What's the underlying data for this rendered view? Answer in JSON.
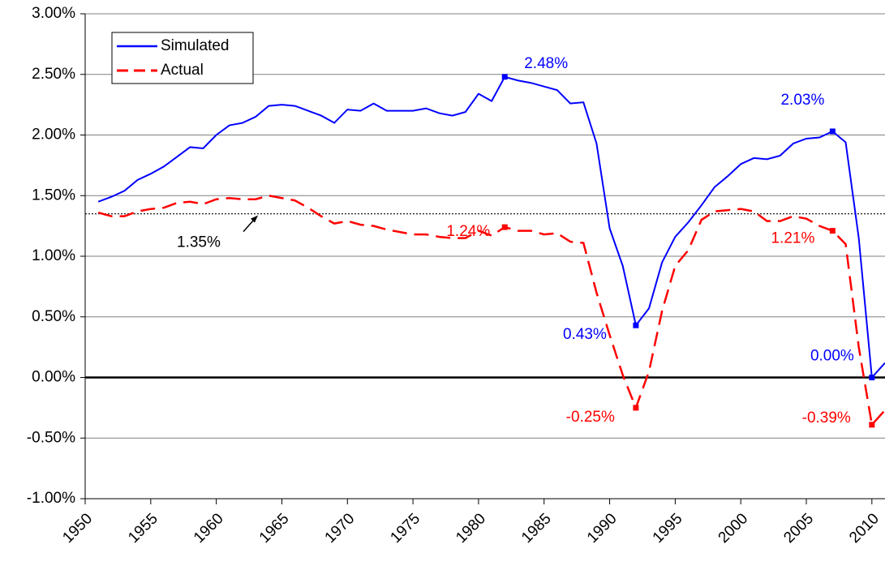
{
  "chart_data": {
    "type": "line",
    "x": [
      1951,
      1952,
      1953,
      1954,
      1955,
      1956,
      1957,
      1958,
      1959,
      1960,
      1961,
      1962,
      1963,
      1964,
      1965,
      1966,
      1967,
      1968,
      1969,
      1970,
      1971,
      1972,
      1973,
      1974,
      1975,
      1976,
      1977,
      1978,
      1979,
      1980,
      1981,
      1982,
      1983,
      1984,
      1985,
      1986,
      1987,
      1988,
      1989,
      1990,
      1991,
      1992,
      1993,
      1994,
      1995,
      1996,
      1997,
      1998,
      1999,
      2000,
      2001,
      2002,
      2003,
      2004,
      2005,
      2006,
      2007,
      2008,
      2009,
      2010,
      2011
    ],
    "series": [
      {
        "name": "Simulated",
        "color": "#0000ff",
        "dash": false,
        "values": [
          1.45,
          1.49,
          1.54,
          1.63,
          1.68,
          1.74,
          1.82,
          1.9,
          1.89,
          2.0,
          2.08,
          2.1,
          2.15,
          2.24,
          2.25,
          2.24,
          2.2,
          2.16,
          2.1,
          2.21,
          2.2,
          2.26,
          2.2,
          2.2,
          2.2,
          2.22,
          2.18,
          2.16,
          2.19,
          2.34,
          2.28,
          2.48,
          2.45,
          2.43,
          2.4,
          2.37,
          2.26,
          2.27,
          1.93,
          1.23,
          0.92,
          0.43,
          0.57,
          0.95,
          1.16,
          1.28,
          1.42,
          1.57,
          1.66,
          1.76,
          1.81,
          1.8,
          1.83,
          1.93,
          1.97,
          1.98,
          2.03,
          1.94,
          1.15,
          0.0,
          0.12
        ],
        "value_labels": [
          null,
          null,
          null,
          null,
          null,
          null,
          null,
          null,
          null,
          null,
          null,
          null,
          null,
          null,
          null,
          null,
          null,
          null,
          null,
          null,
          null,
          null,
          null,
          null,
          null,
          null,
          null,
          null,
          null,
          null,
          null,
          "2.48%",
          null,
          null,
          null,
          null,
          null,
          null,
          null,
          null,
          null,
          "0.43%",
          null,
          null,
          null,
          null,
          null,
          null,
          null,
          null,
          null,
          null,
          null,
          null,
          null,
          null,
          "2.03%",
          null,
          null,
          "0.00%",
          null
        ]
      },
      {
        "name": "Actual",
        "color": "#ff0000",
        "dash": true,
        "values": [
          1.36,
          1.33,
          1.33,
          1.37,
          1.39,
          1.4,
          1.44,
          1.45,
          1.43,
          1.47,
          1.48,
          1.47,
          1.47,
          1.5,
          1.48,
          1.46,
          1.4,
          1.33,
          1.27,
          1.29,
          1.26,
          1.25,
          1.22,
          1.2,
          1.18,
          1.18,
          1.16,
          1.15,
          1.15,
          1.21,
          1.17,
          1.24,
          1.21,
          1.21,
          1.18,
          1.19,
          1.12,
          1.11,
          0.7,
          0.35,
          0.02,
          -0.25,
          0.05,
          0.55,
          0.92,
          1.05,
          1.3,
          1.37,
          1.38,
          1.39,
          1.37,
          1.29,
          1.29,
          1.33,
          1.31,
          1.25,
          1.21,
          1.1,
          0.25,
          -0.39,
          -0.27
        ],
        "value_labels": [
          null,
          null,
          null,
          null,
          null,
          null,
          null,
          null,
          null,
          null,
          null,
          null,
          null,
          null,
          null,
          null,
          null,
          null,
          null,
          null,
          null,
          null,
          null,
          null,
          null,
          null,
          null,
          null,
          null,
          null,
          null,
          "1.24%",
          null,
          null,
          null,
          null,
          null,
          null,
          null,
          null,
          null,
          "-0.25%",
          null,
          null,
          null,
          null,
          null,
          null,
          null,
          null,
          null,
          null,
          null,
          null,
          null,
          null,
          "1.21%",
          null,
          null,
          "-0.39%",
          null
        ]
      }
    ],
    "reference": {
      "value": 1.35,
      "label": "1.35%"
    },
    "xlim": [
      1950,
      2011
    ],
    "xticks": [
      1950,
      1955,
      1960,
      1965,
      1970,
      1975,
      1980,
      1985,
      1990,
      1995,
      2000,
      2005,
      2010
    ],
    "ylim": [
      -1,
      3
    ],
    "yticks": [
      {
        "value": -1,
        "label": "-1.00%"
      },
      {
        "value": -0.5,
        "label": "-0.50%"
      },
      {
        "value": 0,
        "label": "0.00%"
      },
      {
        "value": 0.5,
        "label": "0.50%"
      },
      {
        "value": 1,
        "label": "1.00%"
      },
      {
        "value": 1.5,
        "label": "1.50%"
      },
      {
        "value": 2,
        "label": "2.00%"
      },
      {
        "value": 2.5,
        "label": "2.50%"
      },
      {
        "value": 3,
        "label": "3.00%"
      }
    ],
    "grid": true,
    "legend": "upper left"
  }
}
